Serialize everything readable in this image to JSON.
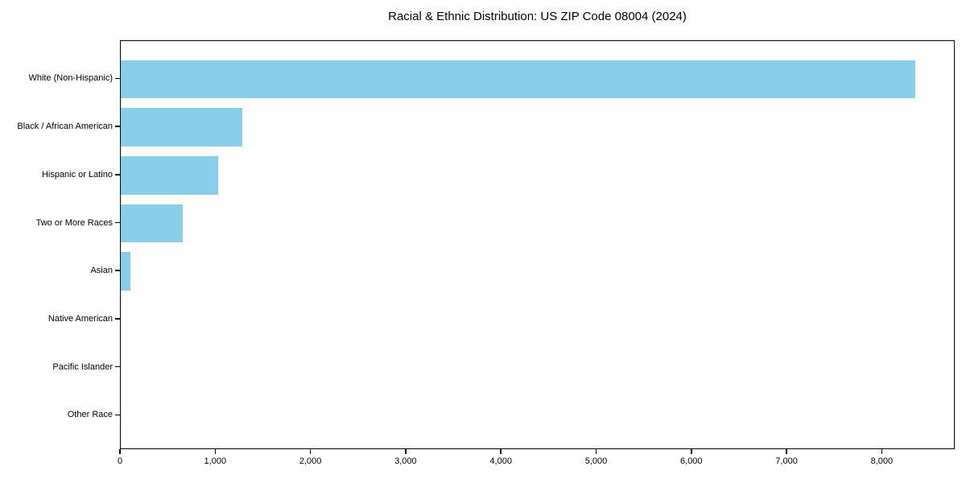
{
  "chart_data": {
    "type": "bar",
    "orientation": "horizontal",
    "title": "Racial & Ethnic Distribution: US ZIP Code 08004 (2024)",
    "categories": [
      "White (Non-Hispanic)",
      "Black / African American",
      "Hispanic or Latino",
      "Two or More Races",
      "Asian",
      "Native American",
      "Pacific Islander",
      "Other Race"
    ],
    "values": [
      8340,
      1275,
      1020,
      655,
      100,
      0,
      0,
      0
    ],
    "xlabel": "",
    "ylabel": "",
    "xlim": [
      0,
      8766
    ],
    "xticks": [
      0,
      1000,
      2000,
      3000,
      4000,
      5000,
      6000,
      7000,
      8000
    ],
    "xtick_labels": [
      "0",
      "1,000",
      "2,000",
      "3,000",
      "4,000",
      "5,000",
      "6,000",
      "7,000",
      "8,000"
    ],
    "grid": false,
    "legend": null,
    "bar_color": "#87CEEB",
    "axis_color": "#000000",
    "background_color": "#FFFFFF"
  }
}
